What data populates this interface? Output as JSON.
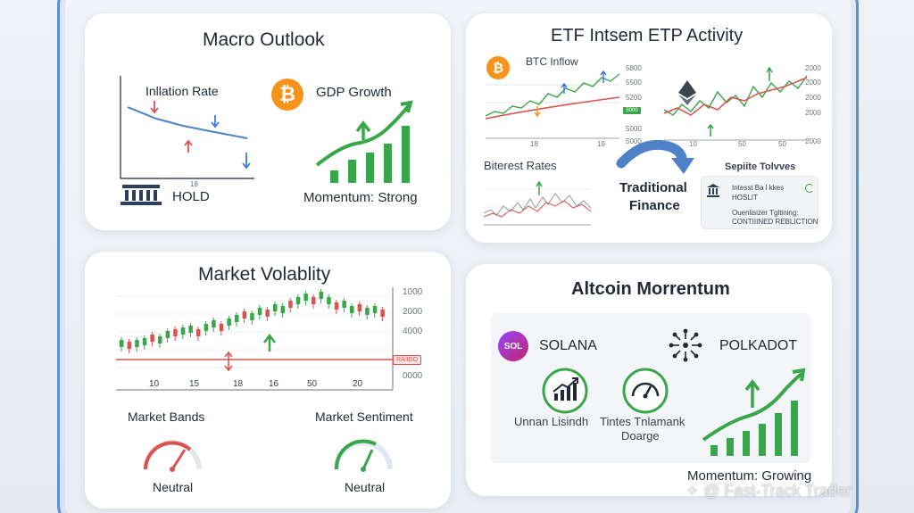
{
  "macro": {
    "title": "Macro Outlook",
    "inflation_label": "Inllation Rate",
    "tick_18": "18",
    "hold_label": "HOLD",
    "gdp_label": "GDP Growth",
    "momentum_label": "Momentum: Strong"
  },
  "etf": {
    "title": "ETF Intsem ETP Activity",
    "btc_inflow": "BTC Inflow",
    "btc_axis": [
      "5800",
      "5500",
      "5200",
      "5000",
      "5000"
    ],
    "btc_x_ticks": [
      "18",
      "19"
    ],
    "eth_axis": [
      "2000",
      "2000",
      "2000",
      "2000",
      "2000"
    ],
    "eth_x_ticks": [
      "10",
      "50",
      "50"
    ],
    "rates_label": "Biterest Rates",
    "traditional_finance": [
      "Traditional",
      "Finance"
    ],
    "sepite_label": "Sepiite Tolvves",
    "info_line1": "Intesst Ba l kkes",
    "info_line2": "HOSLIT",
    "info_line3": "Ouenlisizer Tgltining:",
    "info_line4": "CONTIIINED REBLICTION",
    "badge_value": "5000"
  },
  "volatility": {
    "title": "Market Volablity",
    "y_ticks": [
      "1000",
      "2000",
      "4000",
      "0000"
    ],
    "x_ticks": [
      "10",
      "15",
      "18",
      "16",
      "50",
      "20"
    ],
    "level_label": "RA/IDO",
    "bands_label": "Market Bands",
    "bands_value": "Neutral",
    "sentiment_label": "Market Sentiment",
    "sentiment_value": "Neutral"
  },
  "altcoin": {
    "title": "Altcoin Morrentum",
    "solana_label": "SOLANA",
    "sol_badge": "SOL",
    "polkadot_label": "POLKADOT",
    "icon1_label": "Unnan Lisindh",
    "icon2_label": [
      "Tintes Tnlamank",
      "Doarge"
    ],
    "momentum_label": "Momentum: Growing"
  },
  "watermark": "✧ @ Fast-Track Trader",
  "colors": {
    "frame": "#5b8fd8",
    "green": "#3aa64a",
    "red": "#d9534f",
    "blue": "#3b7dd8",
    "orange": "#f7931a"
  }
}
